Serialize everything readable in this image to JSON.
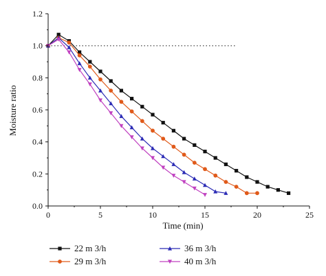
{
  "chart_data": {
    "type": "line",
    "title": "",
    "xlabel": "Time (min)",
    "ylabel": "Moisture ratio",
    "xlim": [
      0,
      25
    ],
    "ylim": [
      0,
      1.2
    ],
    "xticks": [
      0,
      5,
      10,
      15,
      20,
      25
    ],
    "yticks": [
      0.0,
      0.2,
      0.4,
      0.6,
      0.8,
      1.0,
      1.2
    ],
    "xtick_labels": [
      "0",
      "5",
      "10",
      "15",
      "20",
      "25"
    ],
    "ytick_labels": [
      "0.0",
      "0.2",
      "0.4",
      "0.6",
      "0.8",
      "1.0",
      "1.2"
    ],
    "grid": false,
    "reference_line": {
      "y": 1.0,
      "x_range": [
        0,
        18
      ],
      "style": "dotted"
    },
    "legend_position": "bottom",
    "series": [
      {
        "name": "22 m 3/h",
        "color": "#111111",
        "marker": "square",
        "x": [
          0,
          1,
          2,
          3,
          4,
          5,
          6,
          7,
          8,
          9,
          10,
          11,
          12,
          13,
          14,
          15,
          16,
          17,
          18,
          19,
          20,
          21,
          22,
          23
        ],
        "y": [
          1.0,
          1.07,
          1.03,
          0.96,
          0.9,
          0.84,
          0.78,
          0.72,
          0.67,
          0.62,
          0.57,
          0.52,
          0.47,
          0.42,
          0.38,
          0.34,
          0.3,
          0.26,
          0.22,
          0.18,
          0.15,
          0.12,
          0.1,
          0.08
        ]
      },
      {
        "name": "29 m 3/h",
        "color": "#e05a1a",
        "marker": "circle",
        "x": [
          0,
          1,
          2,
          3,
          4,
          5,
          6,
          7,
          8,
          9,
          10,
          11,
          12,
          13,
          14,
          15,
          16,
          17,
          18,
          19,
          20
        ],
        "y": [
          1.0,
          1.05,
          1.02,
          0.94,
          0.87,
          0.79,
          0.72,
          0.65,
          0.59,
          0.53,
          0.47,
          0.42,
          0.37,
          0.32,
          0.27,
          0.23,
          0.19,
          0.15,
          0.12,
          0.08,
          0.08
        ]
      },
      {
        "name": "36 m 3/h",
        "color": "#2b2bb5",
        "marker": "triangle",
        "x": [
          0,
          1,
          2,
          3,
          4,
          5,
          6,
          7,
          8,
          9,
          10,
          11,
          12,
          13,
          14,
          15,
          16,
          17
        ],
        "y": [
          1.0,
          1.05,
          0.99,
          0.89,
          0.8,
          0.72,
          0.64,
          0.56,
          0.49,
          0.42,
          0.36,
          0.31,
          0.26,
          0.21,
          0.17,
          0.13,
          0.09,
          0.08
        ]
      },
      {
        "name": "40 m 3/h",
        "color": "#c040c0",
        "marker": "triangle-down",
        "x": [
          0,
          1,
          2,
          3,
          4,
          5,
          6,
          7,
          8,
          9,
          10,
          11,
          12,
          13,
          14,
          15
        ],
        "y": [
          1.0,
          1.04,
          0.96,
          0.85,
          0.76,
          0.66,
          0.58,
          0.5,
          0.43,
          0.36,
          0.3,
          0.24,
          0.19,
          0.15,
          0.11,
          0.07
        ]
      }
    ]
  }
}
